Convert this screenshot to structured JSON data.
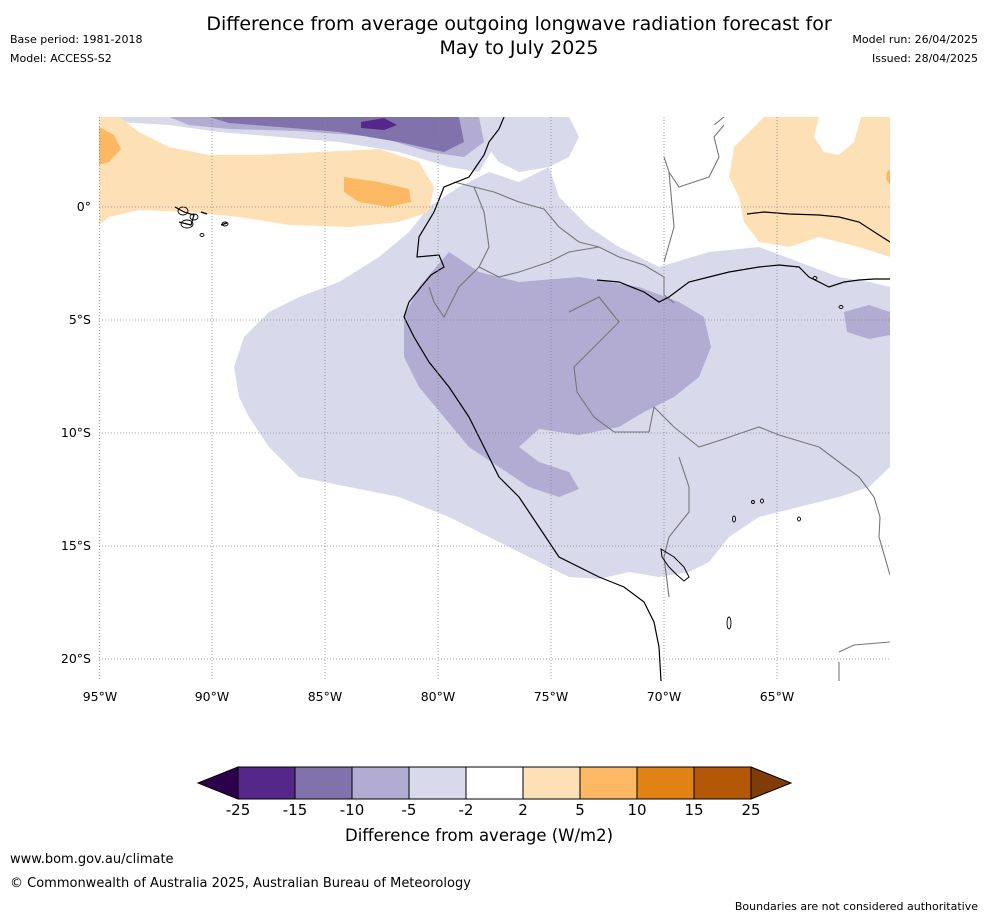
{
  "header": {
    "title_line1": "Difference from average outgoing longwave radiation forecast for",
    "title_line2": "May to July 2025",
    "base_period": "Base period: 1981-2018",
    "model": "Model: ACCESS-S2",
    "model_run": "Model run: 26/04/2025",
    "issued": "Issued: 28/04/2025"
  },
  "map": {
    "lat_labels": [
      "0°",
      "5°S",
      "10°S",
      "15°S",
      "20°S"
    ],
    "lon_labels": [
      "95°W",
      "90°W",
      "85°W",
      "80°W",
      "75°W",
      "70°W",
      "65°W"
    ]
  },
  "colorbar": {
    "title": "Difference from average (W/m2)",
    "ticks": [
      "-25",
      "-15",
      "-10",
      "-5",
      "-2",
      "2",
      "5",
      "10",
      "15",
      "25"
    ],
    "colors": [
      "#2d004b",
      "#542788",
      "#8073ac",
      "#b2abd2",
      "#d8daeb",
      "#ffffff",
      "#fee0b6",
      "#fdb863",
      "#e08214",
      "#b35806",
      "#7f3b08"
    ]
  },
  "footer": {
    "url": "www.bom.gov.au/climate",
    "copyright": "© Commonwealth of Australia 2025, Australian Bureau of Meteorology",
    "disclaimer": "Boundaries are not considered authoritative"
  }
}
